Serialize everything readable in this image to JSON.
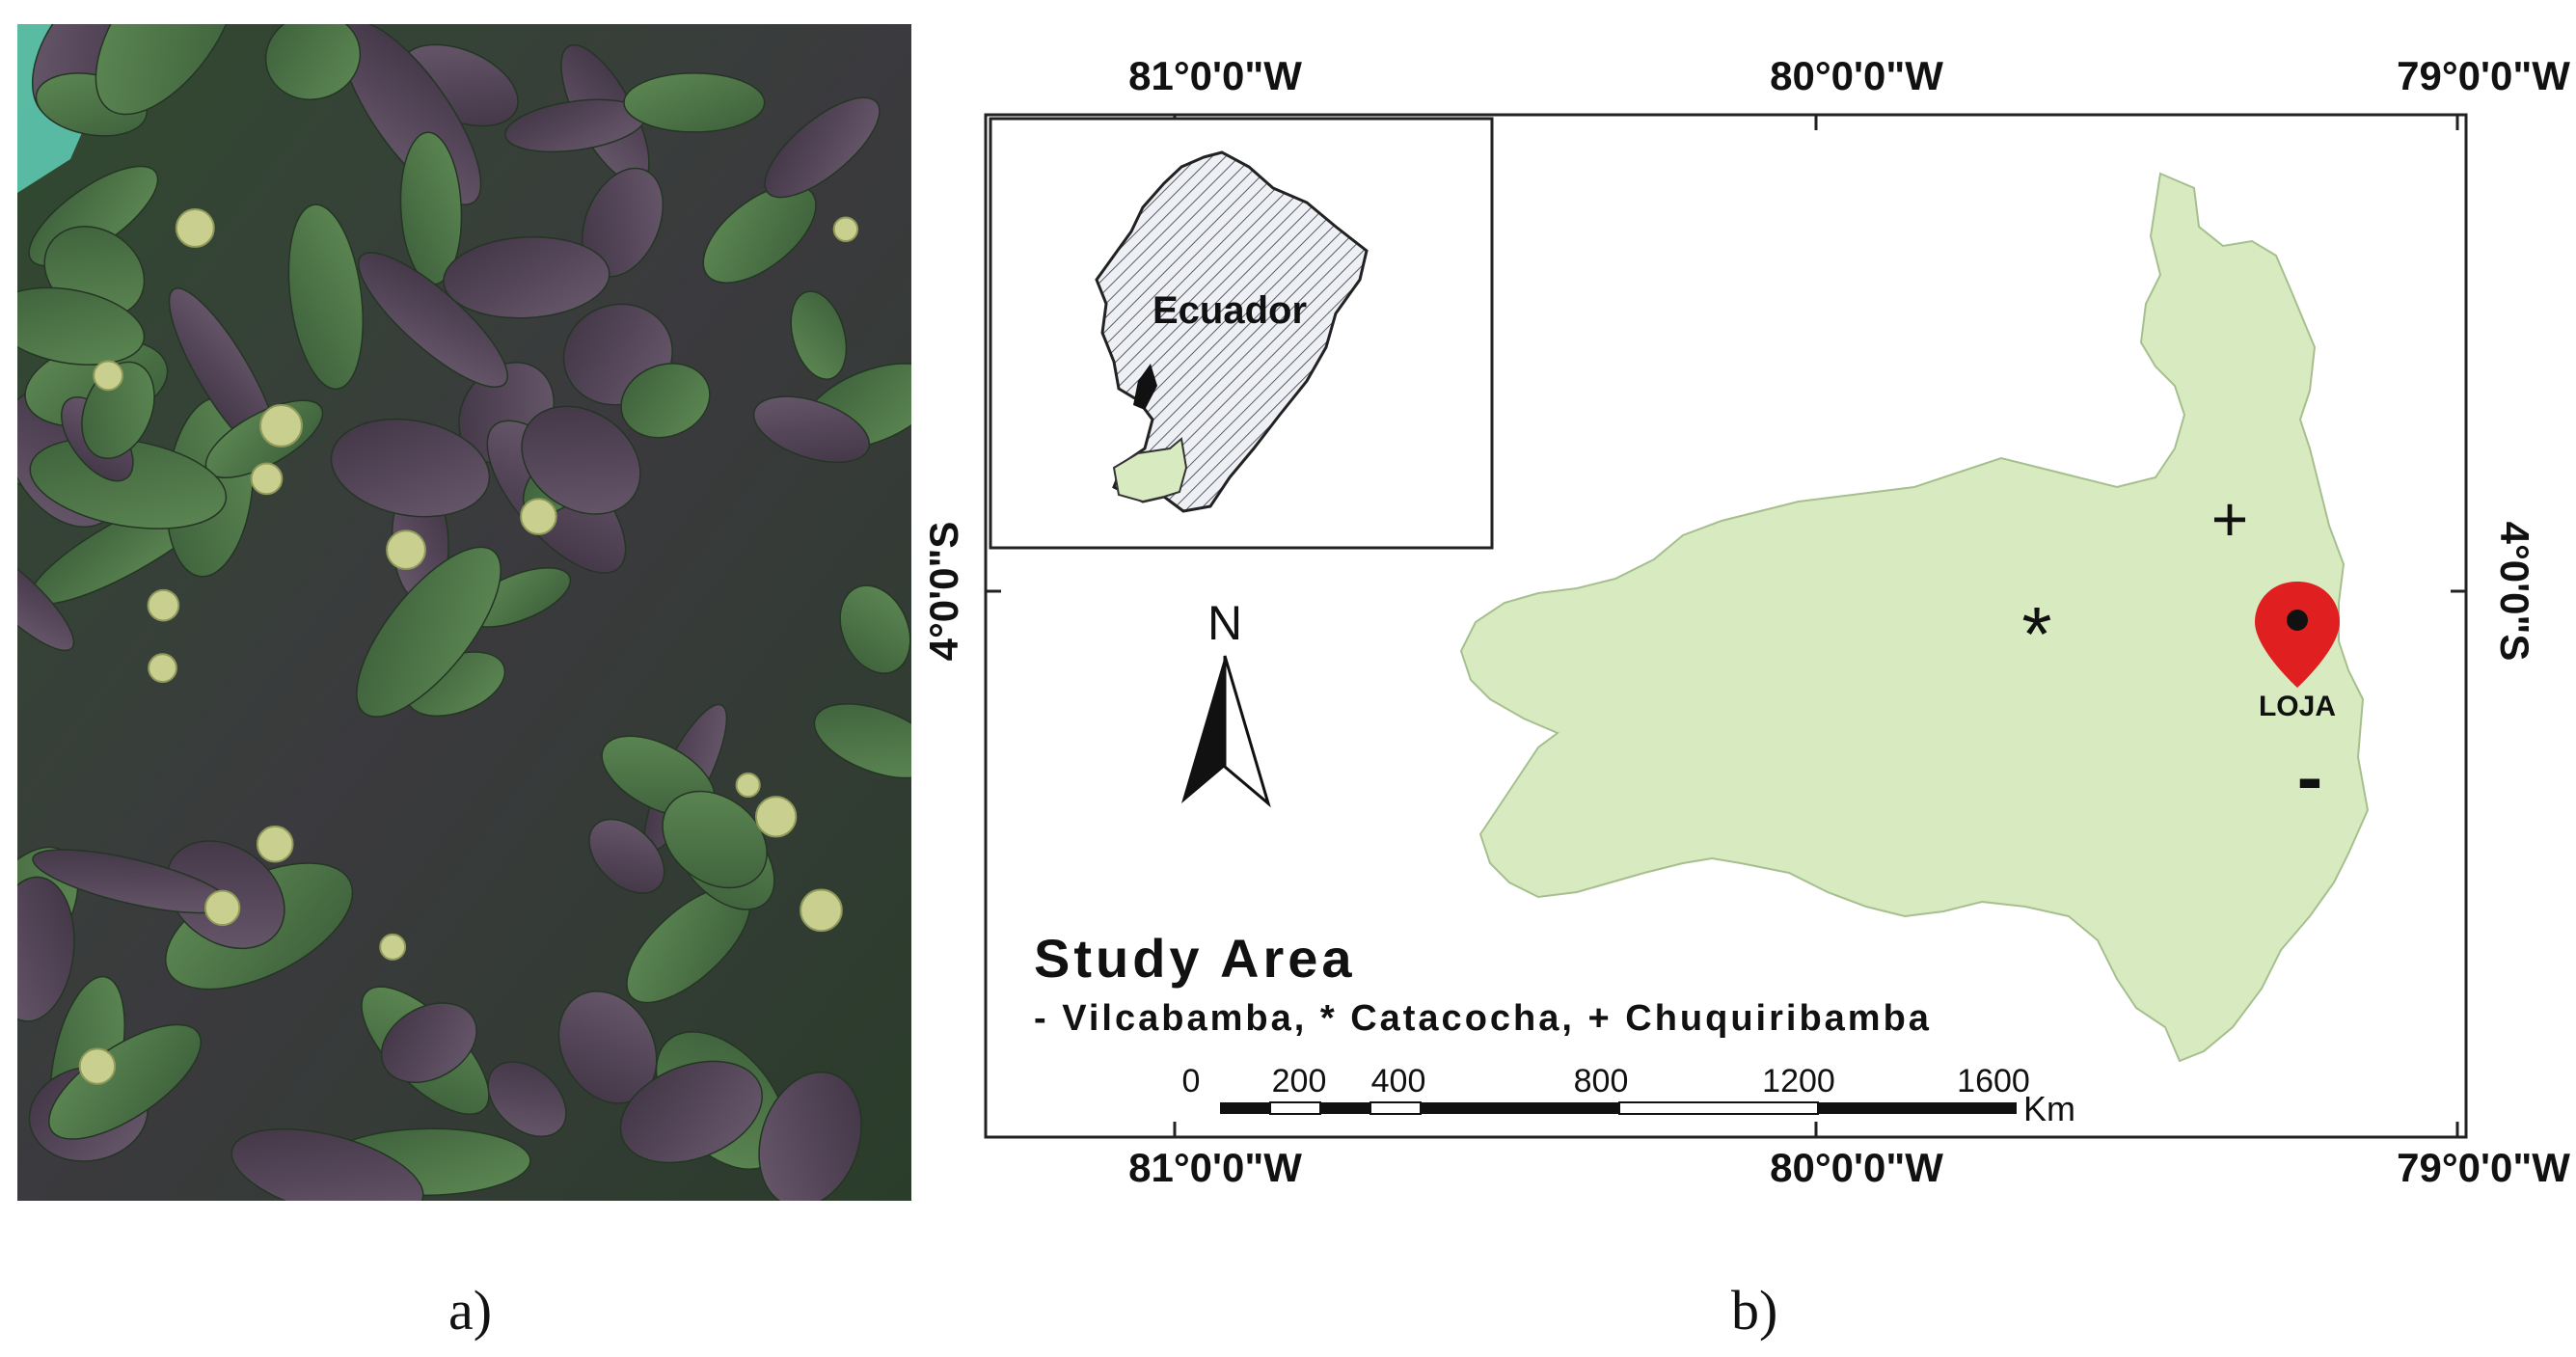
{
  "panel_a": {
    "caption": "a)"
  },
  "panel_b": {
    "caption": "b)",
    "lon_labels": [
      "81°0'0\"W",
      "80°0'0\"W",
      "79°0'0\"W"
    ],
    "lat_label": "4°0'0\"S",
    "inset_label": "Ecuador",
    "north_label": "N",
    "city_label": "LOJA",
    "legend_title": "Study Area",
    "legend_items": "- Vilcabamba, * Catacocha, + Chuquiribamba",
    "site_symbols": {
      "vilcabamba": "-",
      "catacocha": "*",
      "chuquiribamba": "+"
    },
    "scale_ticks": [
      "0",
      "200",
      "400",
      "800",
      "1200",
      "1600"
    ],
    "scale_unit": "Km",
    "colors": {
      "region_fill": "#d8ebc0",
      "marker": "#e02020",
      "ink": "#111111"
    }
  }
}
